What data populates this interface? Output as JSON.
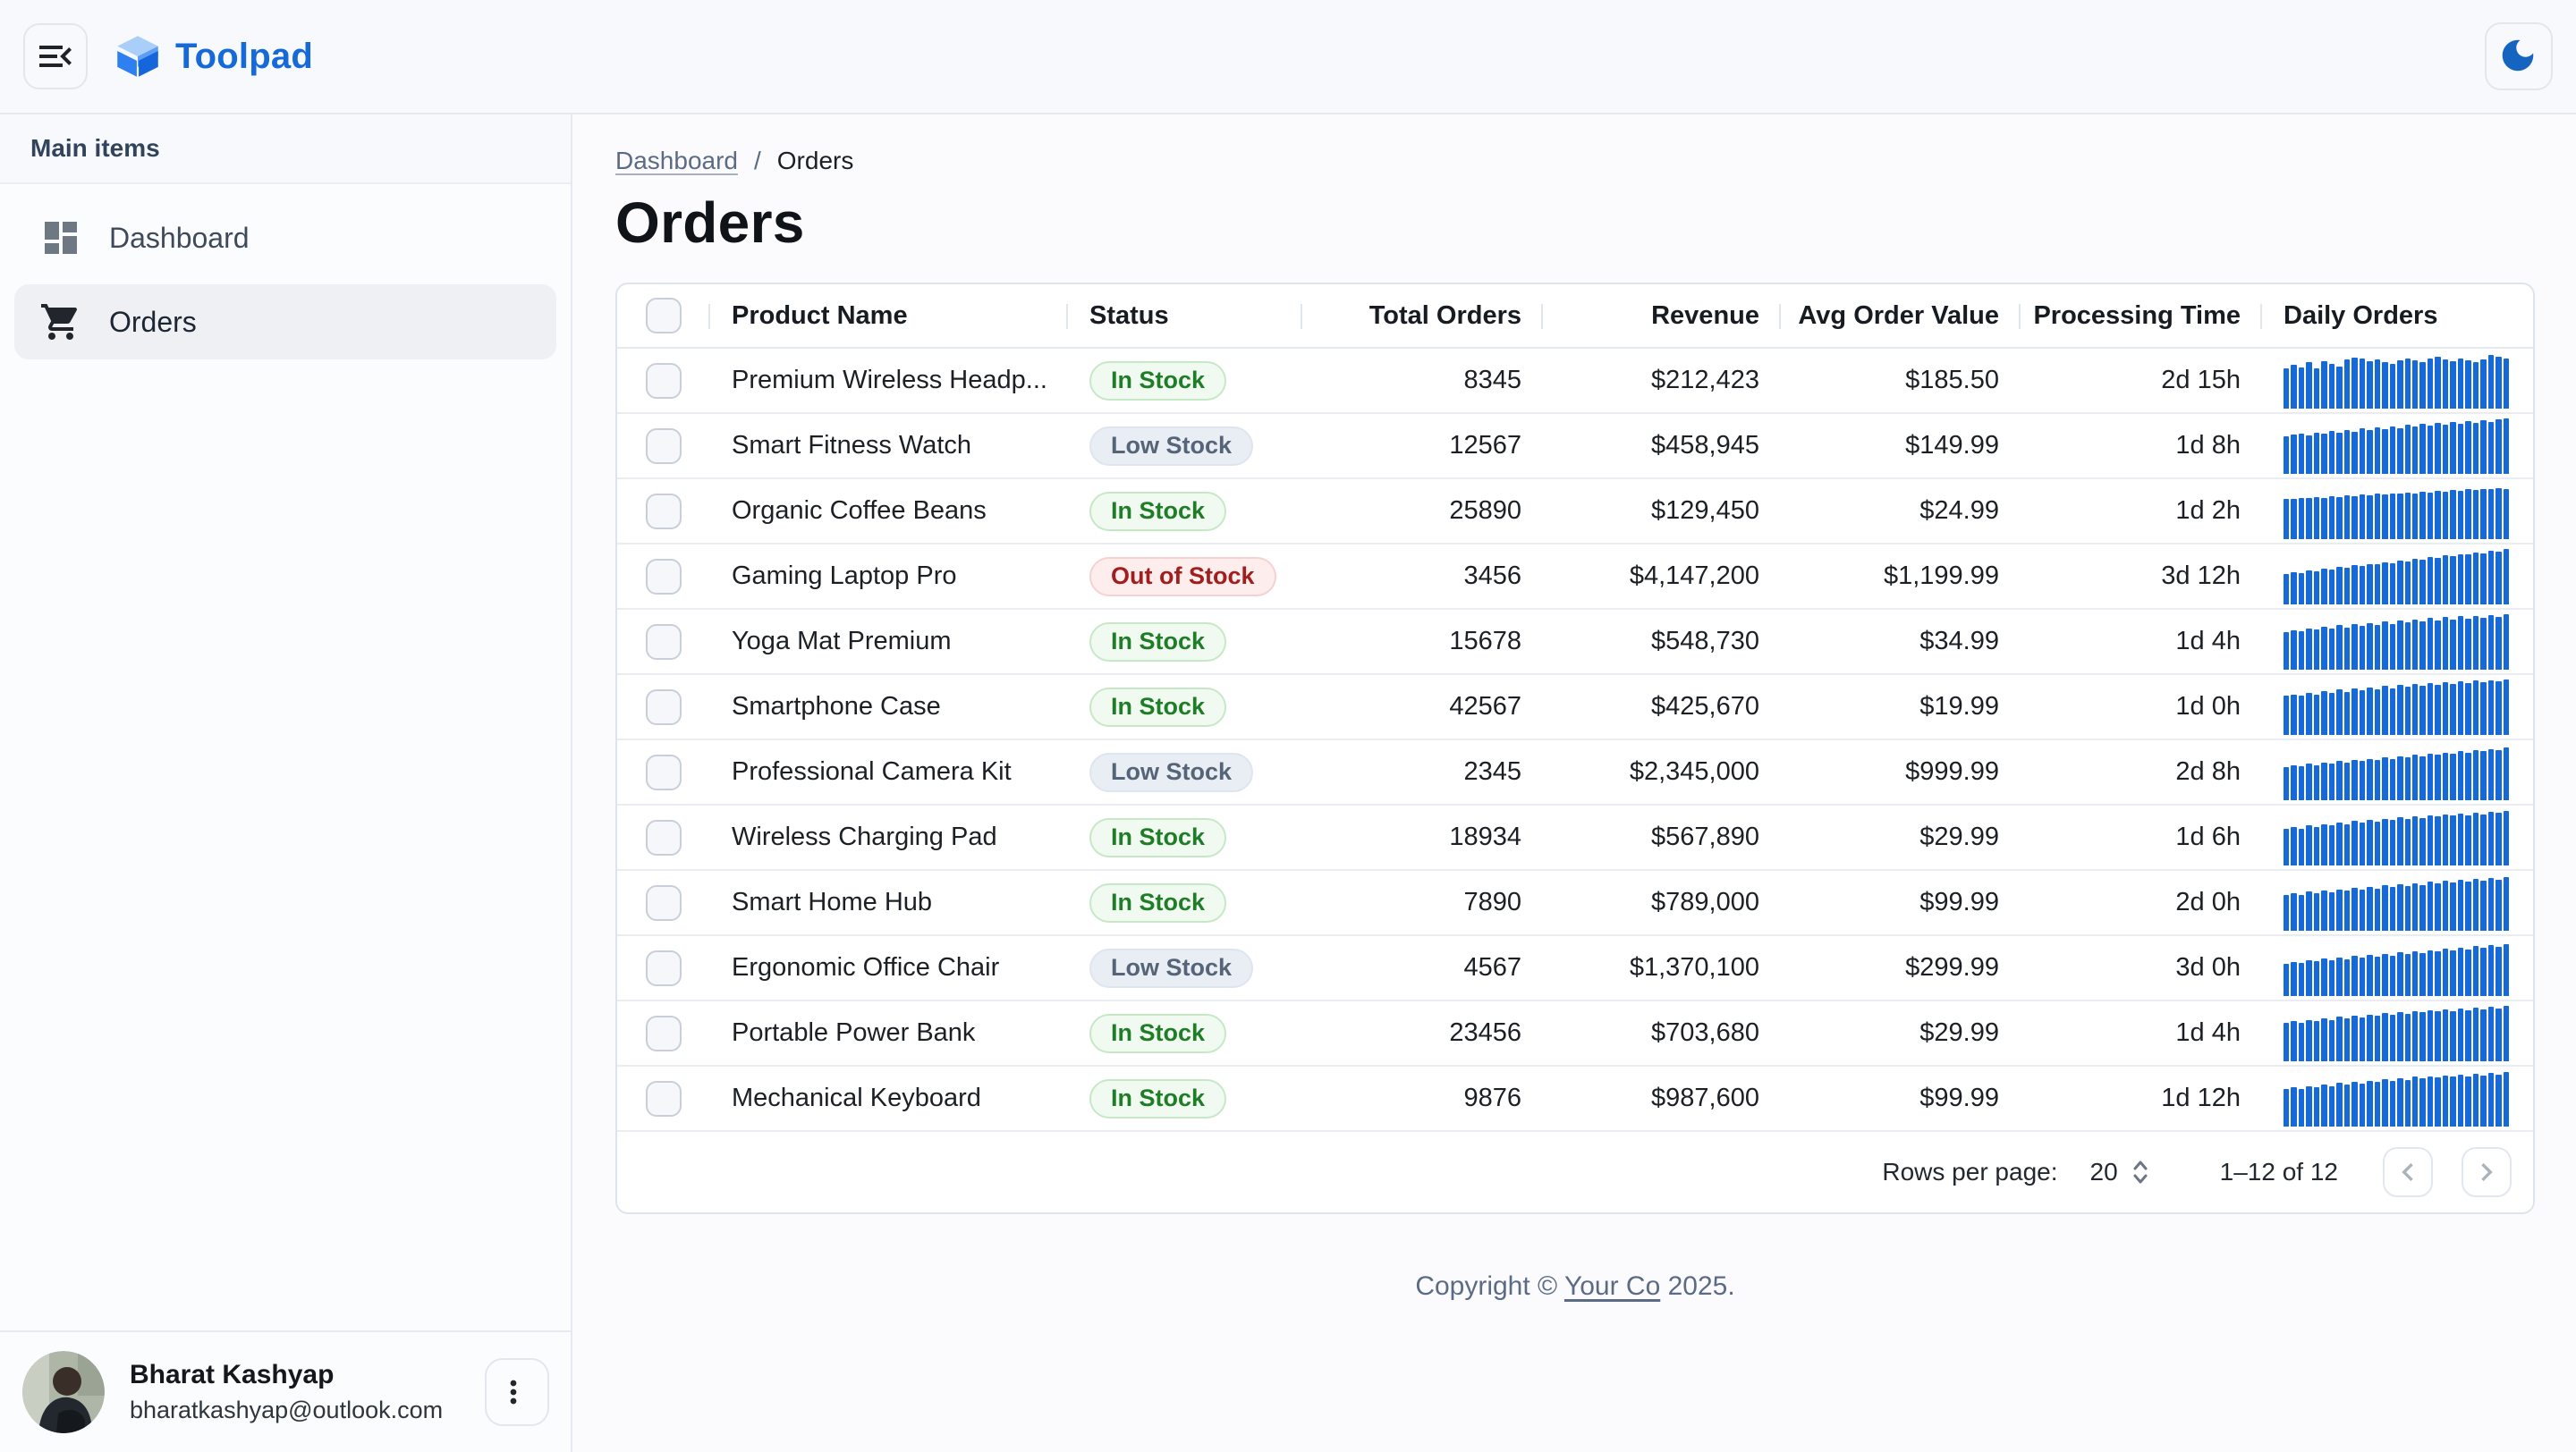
{
  "header": {
    "app_name": "Toolpad"
  },
  "sidebar": {
    "section_label": "Main items",
    "items": [
      {
        "label": "Dashboard",
        "icon": "dashboard-icon",
        "selected": false
      },
      {
        "label": "Orders",
        "icon": "shopping-cart-icon",
        "selected": true
      }
    ],
    "user": {
      "name": "Bharat Kashyap",
      "email": "bharatkashyap@outlook.com"
    }
  },
  "breadcrumb": {
    "parent": "Dashboard",
    "separator": "/",
    "current": "Orders"
  },
  "page_title": "Orders",
  "table": {
    "columns": [
      {
        "label": "Product Name"
      },
      {
        "label": "Status"
      },
      {
        "label": "Total Orders"
      },
      {
        "label": "Revenue"
      },
      {
        "label": "Avg Order Value"
      },
      {
        "label": "Processing Time"
      },
      {
        "label": "Daily Orders"
      }
    ],
    "rows": [
      {
        "product": "Premium Wireless Headp...",
        "status": "In Stock",
        "status_variant": "success",
        "total_orders": "8345",
        "revenue": "$212,423",
        "avg_order_value": "$185.50",
        "processing_time": "2d 15h",
        "daily_orders": [
          62,
          72,
          66,
          78,
          64,
          80,
          74,
          68,
          84,
          90,
          86,
          80,
          84,
          78,
          74,
          82,
          86,
          82,
          78,
          88,
          92,
          84,
          80,
          86,
          82,
          78,
          84,
          96,
          92,
          86
        ]
      },
      {
        "product": "Smart Fitness Watch",
        "status": "Low Stock",
        "status_variant": "neutral",
        "total_orders": "12567",
        "revenue": "$458,945",
        "avg_order_value": "$149.99",
        "processing_time": "1d 8h",
        "daily_orders": [
          56,
          60,
          64,
          58,
          66,
          62,
          70,
          65,
          72,
          68,
          75,
          71,
          78,
          74,
          81,
          77,
          84,
          80,
          86,
          82,
          89,
          85,
          92,
          88,
          94,
          90,
          96,
          92,
          98,
          100
        ]
      },
      {
        "product": "Organic Coffee Beans",
        "status": "In Stock",
        "status_variant": "success",
        "total_orders": "25890",
        "revenue": "$129,450",
        "avg_order_value": "$24.99",
        "processing_time": "1d 2h",
        "daily_orders": [
          64,
          62,
          66,
          65,
          68,
          66,
          70,
          68,
          72,
          70,
          73,
          72,
          75,
          73,
          76,
          75,
          78,
          76,
          80,
          78,
          82,
          80,
          84,
          82,
          86,
          84,
          88,
          86,
          90,
          88
        ]
      },
      {
        "product": "Gaming Laptop Pro",
        "status": "Out of Stock",
        "status_variant": "error",
        "total_orders": "3456",
        "revenue": "$4,147,200",
        "avg_order_value": "$1,199.99",
        "processing_time": "3d 12h",
        "daily_orders": [
          40,
          44,
          42,
          48,
          46,
          52,
          50,
          56,
          54,
          60,
          58,
          64,
          62,
          68,
          66,
          72,
          70,
          76,
          74,
          80,
          78,
          84,
          82,
          88,
          86,
          92,
          90,
          96,
          94,
          100
        ]
      },
      {
        "product": "Yoga Mat Premium",
        "status": "In Stock",
        "status_variant": "success",
        "total_orders": "15678",
        "revenue": "$548,730",
        "avg_order_value": "$34.99",
        "processing_time": "1d 4h",
        "daily_orders": [
          56,
          61,
          58,
          65,
          62,
          69,
          65,
          73,
          68,
          76,
          71,
          79,
          74,
          82,
          77,
          85,
          80,
          88,
          83,
          91,
          85,
          93,
          87,
          95,
          89,
          96,
          91,
          97,
          94,
          100
        ]
      },
      {
        "product": "Smartphone Case",
        "status": "In Stock",
        "status_variant": "success",
        "total_orders": "42567",
        "revenue": "$425,670",
        "avg_order_value": "$19.99",
        "processing_time": "1d 0h",
        "daily_orders": [
          60,
          64,
          61,
          68,
          64,
          72,
          67,
          75,
          70,
          78,
          73,
          81,
          76,
          84,
          79,
          87,
          82,
          90,
          85,
          92,
          87,
          94,
          89,
          96,
          91,
          97,
          93,
          98,
          95,
          100
        ]
      },
      {
        "product": "Professional Camera Kit",
        "status": "Low Stock",
        "status_variant": "neutral",
        "total_orders": "2345",
        "revenue": "$2,345,000",
        "avg_order_value": "$999.99",
        "processing_time": "2d 8h",
        "daily_orders": [
          46,
          50,
          48,
          54,
          51,
          57,
          54,
          60,
          57,
          63,
          60,
          66,
          63,
          69,
          66,
          72,
          69,
          75,
          72,
          78,
          75,
          81,
          78,
          84,
          81,
          87,
          84,
          90,
          87,
          93
        ]
      },
      {
        "product": "Wireless Charging Pad",
        "status": "In Stock",
        "status_variant": "success",
        "total_orders": "18934",
        "revenue": "$567,890",
        "avg_order_value": "$29.99",
        "processing_time": "1d 6h",
        "daily_orders": [
          54,
          58,
          55,
          62,
          59,
          66,
          62,
          70,
          66,
          73,
          69,
          76,
          72,
          79,
          75,
          82,
          78,
          85,
          81,
          88,
          84,
          90,
          86,
          92,
          88,
          94,
          90,
          96,
          93,
          98
        ]
      },
      {
        "product": "Smart Home Hub",
        "status": "In Stock",
        "status_variant": "success",
        "total_orders": "7890",
        "revenue": "$789,000",
        "avg_order_value": "$99.99",
        "processing_time": "2d 0h",
        "daily_orders": [
          52,
          56,
          53,
          60,
          57,
          63,
          59,
          66,
          62,
          69,
          65,
          72,
          68,
          75,
          71,
          78,
          74,
          81,
          77,
          84,
          80,
          86,
          82,
          89,
          85,
          91,
          87,
          94,
          90,
          96
        ]
      },
      {
        "product": "Ergonomic Office Chair",
        "status": "Low Stock",
        "status_variant": "neutral",
        "total_orders": "4567",
        "revenue": "$1,370,100",
        "avg_order_value": "$299.99",
        "processing_time": "3d 0h",
        "daily_orders": [
          44,
          48,
          45,
          52,
          49,
          56,
          52,
          59,
          55,
          62,
          58,
          65,
          61,
          68,
          64,
          71,
          67,
          74,
          70,
          77,
          73,
          80,
          76,
          83,
          79,
          86,
          82,
          89,
          85,
          92
        ]
      },
      {
        "product": "Portable Power Bank",
        "status": "In Stock",
        "status_variant": "success",
        "total_orders": "23456",
        "revenue": "$703,680",
        "avg_order_value": "$29.99",
        "processing_time": "1d 4h",
        "daily_orders": [
          58,
          62,
          59,
          66,
          63,
          70,
          66,
          73,
          69,
          76,
          72,
          79,
          75,
          82,
          78,
          85,
          81,
          88,
          84,
          90,
          86,
          92,
          88,
          94,
          90,
          95,
          92,
          97,
          94,
          99
        ]
      },
      {
        "product": "Mechanical Keyboard",
        "status": "In Stock",
        "status_variant": "success",
        "total_orders": "9876",
        "revenue": "$987,600",
        "avg_order_value": "$99.99",
        "processing_time": "1d 12h",
        "daily_orders": [
          56,
          60,
          57,
          64,
          61,
          68,
          64,
          71,
          67,
          74,
          70,
          77,
          73,
          80,
          76,
          83,
          79,
          86,
          82,
          88,
          84,
          90,
          86,
          92,
          88,
          94,
          90,
          96,
          92,
          98
        ]
      }
    ],
    "pagination": {
      "rows_per_page_label": "Rows per page:",
      "rows_per_page": "20",
      "range_label": "1–12 of 12"
    }
  },
  "footer": {
    "text_prefix": "Copyright © ",
    "company": "Your Co",
    "text_suffix": " 2025."
  },
  "icons": {
    "menu": "menu-open-icon",
    "theme": "dark-mode-moon-icon",
    "dashboard": "dashboard-icon",
    "orders": "shopping-cart-icon",
    "user_menu": "more-vert-icon",
    "pagination_prev": "chevron-left-icon",
    "pagination_next": "chevron-right-icon"
  },
  "colors": {
    "brand_blue": "#1669D9",
    "sparkline_blue": "#1669D9",
    "moon_blue": "#1565C0",
    "success_text": "#1F7D27",
    "success_bg": "#F1FAF1",
    "neutral_text": "#566478",
    "neutral_bg": "#E9EDF4",
    "error_text": "#A21D1D",
    "error_bg": "#FDEDED"
  }
}
